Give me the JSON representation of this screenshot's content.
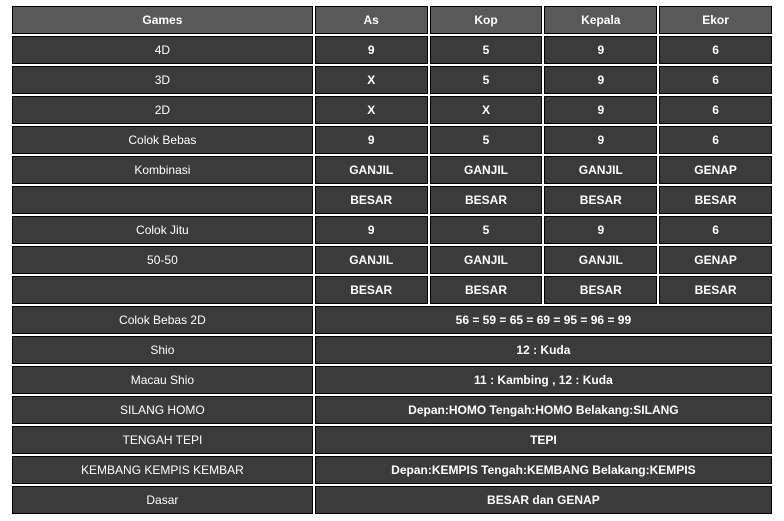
{
  "columns": [
    "Games",
    "As",
    "Kop",
    "Kepala",
    "Ekor"
  ],
  "split_rows": [
    {
      "game": "4D",
      "vals": [
        "9",
        "5",
        "9",
        "6"
      ]
    },
    {
      "game": "3D",
      "vals": [
        "X",
        "5",
        "9",
        "6"
      ]
    },
    {
      "game": "2D",
      "vals": [
        "X",
        "X",
        "9",
        "6"
      ]
    },
    {
      "game": "Colok Bebas",
      "vals": [
        "9",
        "5",
        "9",
        "6"
      ]
    },
    {
      "game": "Kombinasi",
      "vals": [
        "GANJIL",
        "GANJIL",
        "GANJIL",
        "GENAP"
      ]
    },
    {
      "game": "",
      "vals": [
        "BESAR",
        "BESAR",
        "BESAR",
        "BESAR"
      ]
    },
    {
      "game": "Colok Jitu",
      "vals": [
        "9",
        "5",
        "9",
        "6"
      ]
    },
    {
      "game": "50-50",
      "vals": [
        "GANJIL",
        "GANJIL",
        "GANJIL",
        "GENAP"
      ]
    },
    {
      "game": "",
      "vals": [
        "BESAR",
        "BESAR",
        "BESAR",
        "BESAR"
      ]
    }
  ],
  "merged_rows": [
    {
      "game": "Colok Bebas 2D",
      "val": "56 = 59 = 65 = 69 = 95 = 96 = 99"
    },
    {
      "game": "Shio",
      "val": "12 : Kuda"
    },
    {
      "game": "Macau Shio",
      "val": "11 : Kambing , 12 : Kuda"
    },
    {
      "game": "SILANG HOMO",
      "val": "Depan:HOMO Tengah:HOMO Belakang:SILANG"
    },
    {
      "game": "TENGAH TEPI",
      "val": "TEPI"
    },
    {
      "game": "KEMBANG KEMPIS KEMBAR",
      "val": "Depan:KEMPIS Tengah:KEMBANG Belakang:KEMPIS"
    },
    {
      "game": "Dasar",
      "val": "BESAR dan GENAP"
    }
  ]
}
